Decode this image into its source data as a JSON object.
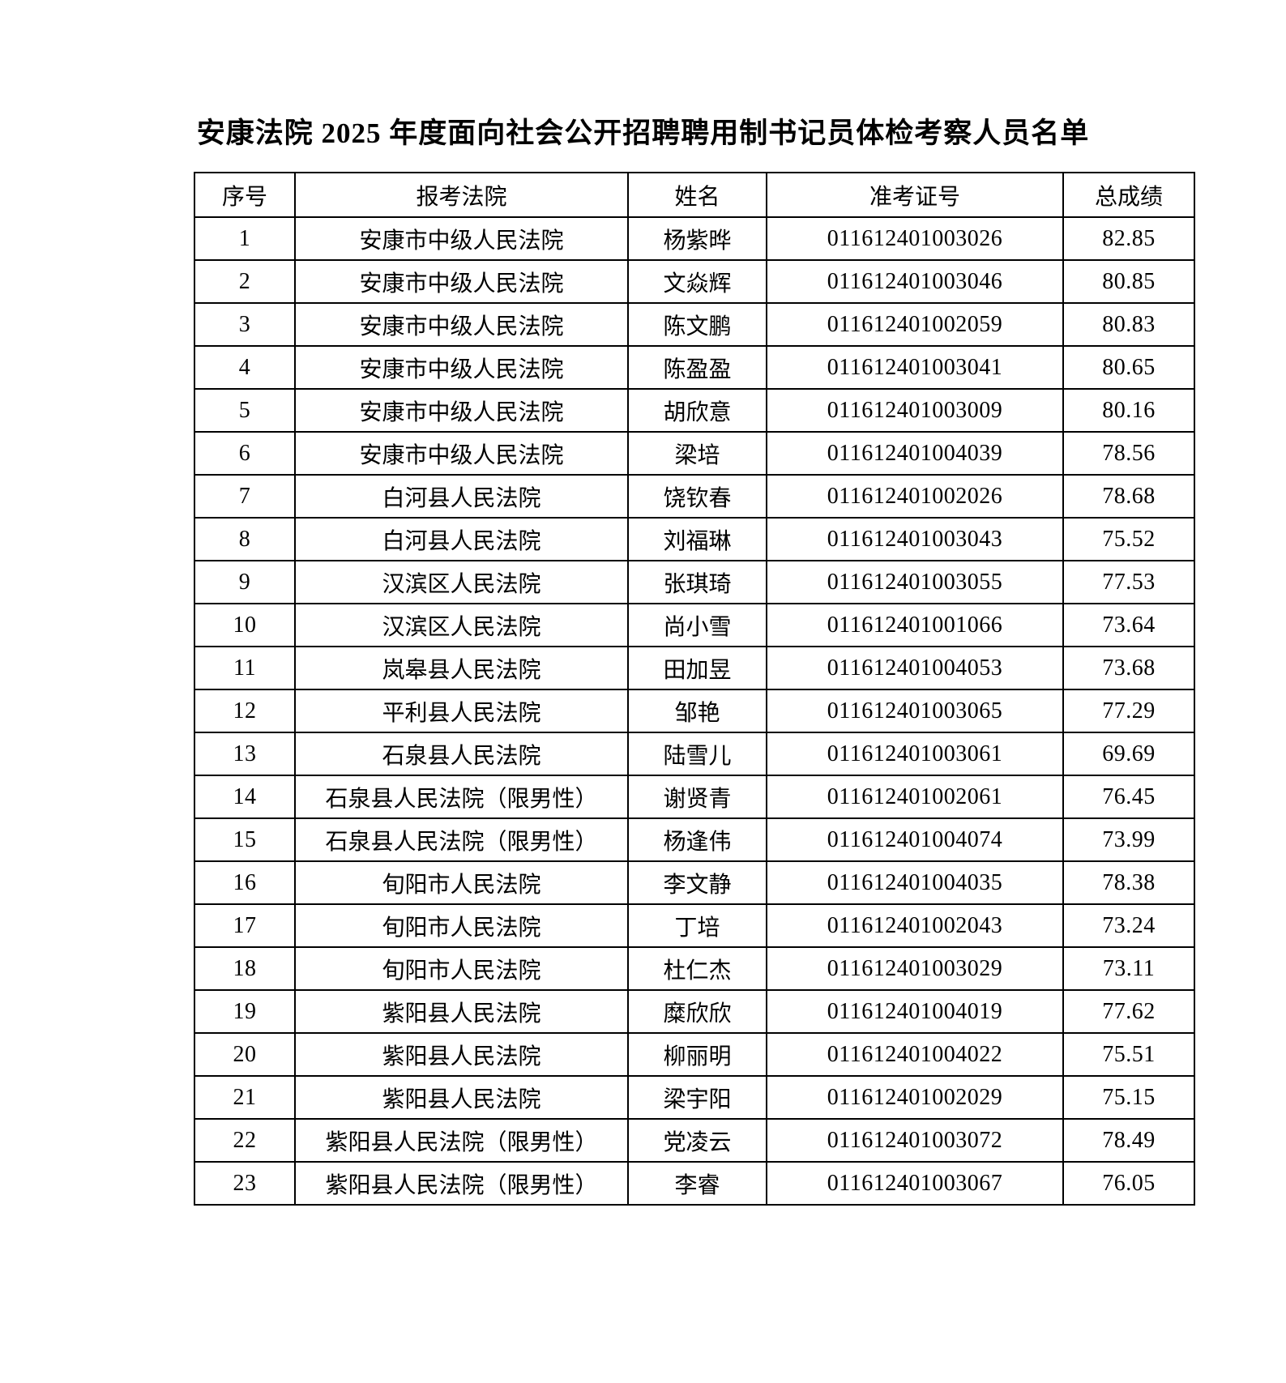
{
  "page": {
    "title": "安康法院 2025 年度面向社会公开招聘聘用制书记员体检考察人员名单"
  },
  "table": {
    "columns": [
      "序号",
      "报考法院",
      "姓名",
      "准考证号",
      "总成绩"
    ],
    "rows": [
      {
        "no": "1",
        "court": "安康市中级人民法院",
        "name": "杨紫晔",
        "ticket": "011612401003026",
        "score": "82.85"
      },
      {
        "no": "2",
        "court": "安康市中级人民法院",
        "name": "文焱辉",
        "ticket": "011612401003046",
        "score": "80.85"
      },
      {
        "no": "3",
        "court": "安康市中级人民法院",
        "name": "陈文鹏",
        "ticket": "011612401002059",
        "score": "80.83"
      },
      {
        "no": "4",
        "court": "安康市中级人民法院",
        "name": "陈盈盈",
        "ticket": "011612401003041",
        "score": "80.65"
      },
      {
        "no": "5",
        "court": "安康市中级人民法院",
        "name": "胡欣意",
        "ticket": "011612401003009",
        "score": "80.16"
      },
      {
        "no": "6",
        "court": "安康市中级人民法院",
        "name": "梁培",
        "ticket": "011612401004039",
        "score": "78.56"
      },
      {
        "no": "7",
        "court": "白河县人民法院",
        "name": "饶钦春",
        "ticket": "011612401002026",
        "score": "78.68"
      },
      {
        "no": "8",
        "court": "白河县人民法院",
        "name": "刘福琳",
        "ticket": "011612401003043",
        "score": "75.52"
      },
      {
        "no": "9",
        "court": "汉滨区人民法院",
        "name": "张琪琦",
        "ticket": "011612401003055",
        "score": "77.53"
      },
      {
        "no": "10",
        "court": "汉滨区人民法院",
        "name": "尚小雪",
        "ticket": "011612401001066",
        "score": "73.64"
      },
      {
        "no": "11",
        "court": "岚皋县人民法院",
        "name": "田加昱",
        "ticket": "011612401004053",
        "score": "73.68"
      },
      {
        "no": "12",
        "court": "平利县人民法院",
        "name": "邹艳",
        "ticket": "011612401003065",
        "score": "77.29"
      },
      {
        "no": "13",
        "court": "石泉县人民法院",
        "name": "陆雪儿",
        "ticket": "011612401003061",
        "score": "69.69"
      },
      {
        "no": "14",
        "court": "石泉县人民法院（限男性）",
        "name": "谢贤青",
        "ticket": "011612401002061",
        "score": "76.45"
      },
      {
        "no": "15",
        "court": "石泉县人民法院（限男性）",
        "name": "杨逢伟",
        "ticket": "011612401004074",
        "score": "73.99"
      },
      {
        "no": "16",
        "court": "旬阳市人民法院",
        "name": "李文静",
        "ticket": "011612401004035",
        "score": "78.38"
      },
      {
        "no": "17",
        "court": "旬阳市人民法院",
        "name": "丁培",
        "ticket": "011612401002043",
        "score": "73.24"
      },
      {
        "no": "18",
        "court": "旬阳市人民法院",
        "name": "杜仁杰",
        "ticket": "011612401003029",
        "score": "73.11"
      },
      {
        "no": "19",
        "court": "紫阳县人民法院",
        "name": "糜欣欣",
        "ticket": "011612401004019",
        "score": "77.62"
      },
      {
        "no": "20",
        "court": "紫阳县人民法院",
        "name": "柳丽明",
        "ticket": "011612401004022",
        "score": "75.51"
      },
      {
        "no": "21",
        "court": "紫阳县人民法院",
        "name": "梁宇阳",
        "ticket": "011612401002029",
        "score": "75.15"
      },
      {
        "no": "22",
        "court": "紫阳县人民法院（限男性）",
        "name": "党凌云",
        "ticket": "011612401003072",
        "score": "78.49"
      },
      {
        "no": "23",
        "court": "紫阳县人民法院（限男性）",
        "name": "李睿",
        "ticket": "011612401003067",
        "score": "76.05"
      }
    ]
  }
}
